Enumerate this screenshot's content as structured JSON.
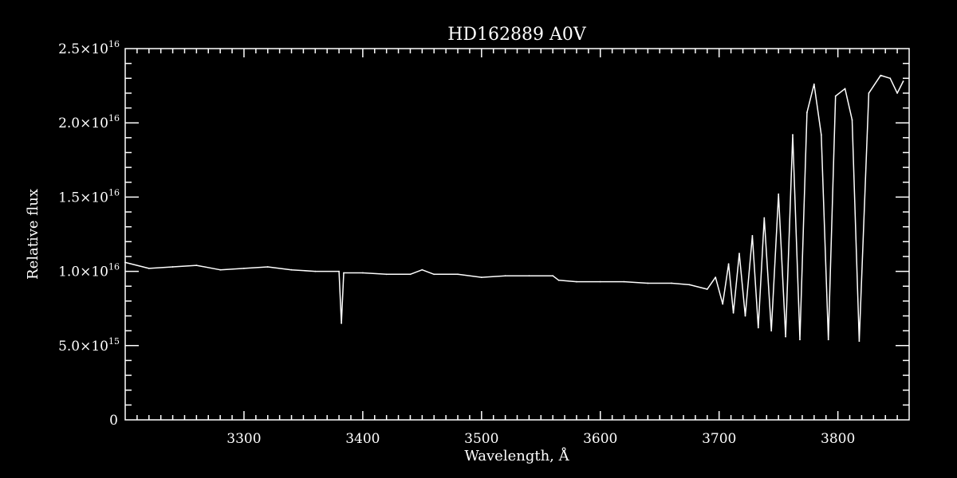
{
  "chart_data": {
    "type": "line",
    "title": "HD162889  A0V",
    "xlabel": "Wavelength, Å",
    "ylabel": "Relative flux",
    "xlim": [
      3200,
      3860
    ],
    "ylim": [
      0,
      2.5e+16
    ],
    "grid": false,
    "x_ticks": [
      {
        "value": 3300,
        "label": "3300"
      },
      {
        "value": 3400,
        "label": "3400"
      },
      {
        "value": 3500,
        "label": "3500"
      },
      {
        "value": 3600,
        "label": "3600"
      },
      {
        "value": 3700,
        "label": "3700"
      },
      {
        "value": 3800,
        "label": "3800"
      }
    ],
    "y_ticks": [
      {
        "value": 0,
        "mant": "0",
        "exp": ""
      },
      {
        "value": 5000000000000000.0,
        "mant": "5.0×10",
        "exp": "15"
      },
      {
        "value": 1e+16,
        "mant": "1.0×10",
        "exp": "16"
      },
      {
        "value": 1.5e+16,
        "mant": "1.5×10",
        "exp": "16"
      },
      {
        "value": 2e+16,
        "mant": "2.0×10",
        "exp": "16"
      },
      {
        "value": 2.5e+16,
        "mant": "2.5×10",
        "exp": "16"
      }
    ],
    "series": [
      {
        "color": "#ffffff",
        "x": [
          3200,
          3220,
          3240,
          3260,
          3280,
          3300,
          3320,
          3340,
          3360,
          3380,
          3382,
          3384,
          3400,
          3420,
          3440,
          3450,
          3460,
          3480,
          3500,
          3520,
          3540,
          3560,
          3565,
          3580,
          3600,
          3620,
          3640,
          3660,
          3675,
          3690,
          3697,
          3703,
          3708,
          3712,
          3717,
          3722,
          3728,
          3733,
          3738,
          3744,
          3750,
          3756,
          3762,
          3768,
          3774,
          3780,
          3786,
          3792,
          3798,
          3806,
          3812,
          3818,
          3826,
          3836,
          3844,
          3850,
          3855
        ],
        "y": [
          1.06e+16,
          1.02e+16,
          1.03e+16,
          1.04e+16,
          1.01e+16,
          1.02e+16,
          1.03e+16,
          1.01e+16,
          1e+16,
          1e+16,
          6500000000000000.0,
          9900000000000000.0,
          9900000000000000.0,
          9800000000000000.0,
          9800000000000000.0,
          1.01e+16,
          9800000000000000.0,
          9800000000000000.0,
          9600000000000000.0,
          9700000000000000.0,
          9700000000000000.0,
          9700000000000000.0,
          9400000000000000.0,
          9300000000000000.0,
          9300000000000000.0,
          9300000000000000.0,
          9200000000000000.0,
          9200000000000000.0,
          9100000000000000.0,
          8800000000000000.0,
          9600000000000000.0,
          7800000000000000.0,
          1.05e+16,
          7200000000000000.0,
          1.12e+16,
          7000000000000000.0,
          1.24e+16,
          6200000000000000.0,
          1.36e+16,
          6000000000000000.0,
          1.52e+16,
          5600000000000000.0,
          1.92e+16,
          5400000000000000.0,
          2.07e+16,
          2.26e+16,
          1.92e+16,
          5400000000000000.0,
          2.18e+16,
          2.23e+16,
          2.02e+16,
          5300000000000000.0,
          2.2e+16,
          2.32e+16,
          2.3e+16,
          2.2e+16,
          2.28e+16
        ]
      }
    ]
  }
}
